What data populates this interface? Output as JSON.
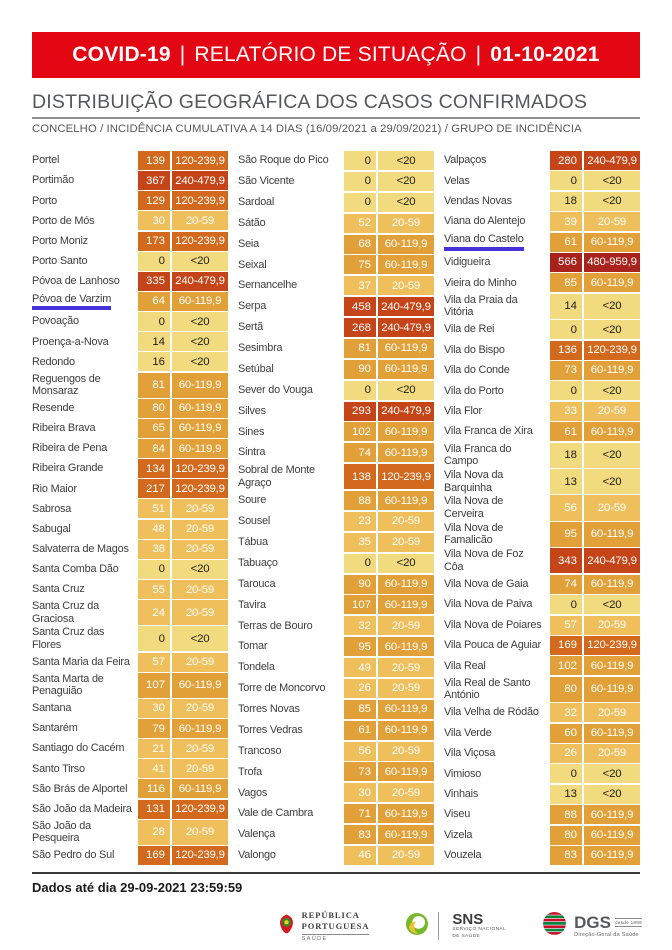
{
  "banner": {
    "background": "#E30613",
    "covid_label": "COVID-19",
    "separator": "|",
    "report_label": "RELATÓRIO DE SITUAÇÃO",
    "date": "01-10-2021"
  },
  "heading": {
    "title": "DISTRIBUIÇÃO GEOGRÁFICA DOS CASOS CONFIRMADOS",
    "subtitle": "CONCELHO / INCIDÊNCIA CUMULATIVA A 14 DIAS (16/09/2021 a 29/09/2021) / GRUPO DE INCIDÊNCIA"
  },
  "brand_colors": {
    "banner_red": "#E30613",
    "highlight_underline_blue": "#4632D8"
  },
  "incidence_groups": [
    {
      "label": "<20",
      "color": "#F2DA7E",
      "text_color": "#1d1d1b"
    },
    {
      "label": "20-59",
      "color": "#EFBF5C",
      "text_color": "#ffffff"
    },
    {
      "label": "60-119,9",
      "color": "#E1A138",
      "text_color": "#ffffff"
    },
    {
      "label": "120-239,9",
      "color": "#D2691C",
      "text_color": "#ffffff"
    },
    {
      "label": "240-479,9",
      "color": "#C54518",
      "text_color": "#ffffff"
    },
    {
      "label": "480-959,9",
      "color": "#A8231B",
      "text_color": "#ffffff"
    }
  ],
  "columns": [
    {
      "rows": [
        {
          "n": "Portel",
          "c": "139",
          "g": 3
        },
        {
          "n": "Portimão",
          "c": "367",
          "g": 4
        },
        {
          "n": "Porto",
          "c": "129",
          "g": 3
        },
        {
          "n": "Porto de Mós",
          "c": "30",
          "g": 1
        },
        {
          "n": "Porto Moniz",
          "c": "173",
          "g": 3
        },
        {
          "n": "Porto Santo",
          "c": "0",
          "g": 0
        },
        {
          "n": "Póvoa de Lanhoso",
          "c": "335",
          "g": 4
        },
        {
          "n": "Póvoa de Varzim",
          "c": "64",
          "g": 2,
          "u": true
        },
        {
          "n": "Povoação",
          "c": "0",
          "g": 0
        },
        {
          "n": "Proença-a-Nova",
          "c": "14",
          "g": 0
        },
        {
          "n": "Redondo",
          "c": "16",
          "g": 0
        },
        {
          "n": "Reguengos de Monsaraz",
          "c": "81",
          "g": 2
        },
        {
          "n": "Resende",
          "c": "80",
          "g": 2
        },
        {
          "n": "Ribeira Brava",
          "c": "65",
          "g": 2
        },
        {
          "n": "Ribeira de Pena",
          "c": "84",
          "g": 2
        },
        {
          "n": "Ribeira Grande",
          "c": "134",
          "g": 3
        },
        {
          "n": "Rio Maior",
          "c": "217",
          "g": 3
        },
        {
          "n": "Sabrosa",
          "c": "51",
          "g": 1
        },
        {
          "n": "Sabugal",
          "c": "48",
          "g": 1
        },
        {
          "n": "Salvaterra de Magos",
          "c": "38",
          "g": 1
        },
        {
          "n": "Santa Comba Dão",
          "c": "0",
          "g": 0
        },
        {
          "n": "Santa Cruz",
          "c": "55",
          "g": 1
        },
        {
          "n": "Santa Cruz da Graciosa",
          "c": "24",
          "g": 1
        },
        {
          "n": "Santa Cruz das Flores",
          "c": "0",
          "g": 0
        },
        {
          "n": "Santa Maria da Feira",
          "c": "57",
          "g": 1
        },
        {
          "n": "Santa Marta de Penaguião",
          "c": "107",
          "g": 2
        },
        {
          "n": "Santana",
          "c": "30",
          "g": 1
        },
        {
          "n": "Santarém",
          "c": "79",
          "g": 2
        },
        {
          "n": "Santiago do Cacém",
          "c": "21",
          "g": 1
        },
        {
          "n": "Santo Tirso",
          "c": "41",
          "g": 1
        },
        {
          "n": "São Brás de Alportel",
          "c": "116",
          "g": 2
        },
        {
          "n": "São João da Madeira",
          "c": "131",
          "g": 3
        },
        {
          "n": "São João da Pesqueira",
          "c": "28",
          "g": 1
        },
        {
          "n": "São Pedro do Sul",
          "c": "169",
          "g": 3
        }
      ]
    },
    {
      "rows": [
        {
          "n": "São Roque do Pico",
          "c": "0",
          "g": 0
        },
        {
          "n": "São Vicente",
          "c": "0",
          "g": 0
        },
        {
          "n": "Sardoal",
          "c": "0",
          "g": 0
        },
        {
          "n": "Sátão",
          "c": "52",
          "g": 1
        },
        {
          "n": "Seia",
          "c": "68",
          "g": 2
        },
        {
          "n": "Seixal",
          "c": "75",
          "g": 2
        },
        {
          "n": "Sernancelhe",
          "c": "37",
          "g": 1
        },
        {
          "n": "Serpa",
          "c": "458",
          "g": 4
        },
        {
          "n": "Sertã",
          "c": "268",
          "g": 4
        },
        {
          "n": "Sesimbra",
          "c": "81",
          "g": 2
        },
        {
          "n": "Setúbal",
          "c": "90",
          "g": 2
        },
        {
          "n": "Sever do Vouga",
          "c": "0",
          "g": 0
        },
        {
          "n": "Silves",
          "c": "293",
          "g": 4
        },
        {
          "n": "Sines",
          "c": "102",
          "g": 2
        },
        {
          "n": "Sintra",
          "c": "74",
          "g": 2
        },
        {
          "n": "Sobral de Monte Agraço",
          "c": "138",
          "g": 3
        },
        {
          "n": "Soure",
          "c": "88",
          "g": 2
        },
        {
          "n": "Sousel",
          "c": "23",
          "g": 1
        },
        {
          "n": "Tábua",
          "c": "35",
          "g": 1
        },
        {
          "n": "Tabuaço",
          "c": "0",
          "g": 0
        },
        {
          "n": "Tarouca",
          "c": "90",
          "g": 2
        },
        {
          "n": "Tavira",
          "c": "107",
          "g": 2
        },
        {
          "n": "Terras de Bouro",
          "c": "32",
          "g": 1
        },
        {
          "n": "Tomar",
          "c": "95",
          "g": 2
        },
        {
          "n": "Tondela",
          "c": "49",
          "g": 1
        },
        {
          "n": "Torre de Moncorvo",
          "c": "26",
          "g": 1
        },
        {
          "n": "Torres Novas",
          "c": "85",
          "g": 2
        },
        {
          "n": "Torres Vedras",
          "c": "61",
          "g": 2
        },
        {
          "n": "Trancoso",
          "c": "56",
          "g": 1
        },
        {
          "n": "Trofa",
          "c": "73",
          "g": 2
        },
        {
          "n": "Vagos",
          "c": "30",
          "g": 1
        },
        {
          "n": "Vale de Cambra",
          "c": "71",
          "g": 2
        },
        {
          "n": "Valença",
          "c": "83",
          "g": 2
        },
        {
          "n": "Valongo",
          "c": "46",
          "g": 1
        }
      ]
    },
    {
      "rows": [
        {
          "n": "Valpaços",
          "c": "280",
          "g": 4
        },
        {
          "n": "Velas",
          "c": "0",
          "g": 0
        },
        {
          "n": "Vendas Novas",
          "c": "18",
          "g": 0
        },
        {
          "n": "Viana do Alentejo",
          "c": "39",
          "g": 1
        },
        {
          "n": "Viana do Castelo",
          "c": "61",
          "g": 2,
          "u": true
        },
        {
          "n": "Vidigueira",
          "c": "566",
          "g": 5
        },
        {
          "n": "Vieira do Minho",
          "c": "85",
          "g": 2
        },
        {
          "n": "Vila da Praia da Vitória",
          "c": "14",
          "g": 0
        },
        {
          "n": "Vila de Rei",
          "c": "0",
          "g": 0
        },
        {
          "n": "Vila do Bispo",
          "c": "136",
          "g": 3
        },
        {
          "n": "Vila do Conde",
          "c": "73",
          "g": 2
        },
        {
          "n": "Vila do Porto",
          "c": "0",
          "g": 0
        },
        {
          "n": "Vila Flor",
          "c": "33",
          "g": 1
        },
        {
          "n": "Vila Franca de Xira",
          "c": "61",
          "g": 2
        },
        {
          "n": "Vila Franca do Campo",
          "c": "18",
          "g": 0
        },
        {
          "n": "Vila Nova da Barquinha",
          "c": "13",
          "g": 0
        },
        {
          "n": "Vila Nova de Cerveira",
          "c": "56",
          "g": 1
        },
        {
          "n": "Vila Nova de Famalicão",
          "c": "95",
          "g": 2
        },
        {
          "n": "Vila Nova de Foz Côa",
          "c": "343",
          "g": 4
        },
        {
          "n": "Vila Nova de Gaia",
          "c": "74",
          "g": 2
        },
        {
          "n": "Vila Nova de Paiva",
          "c": "0",
          "g": 0
        },
        {
          "n": "Vila Nova de Poiares",
          "c": "57",
          "g": 1
        },
        {
          "n": "Vila Pouca de Aguiar",
          "c": "169",
          "g": 3
        },
        {
          "n": "Vila Real",
          "c": "102",
          "g": 2
        },
        {
          "n": "Vila Real de Santo António",
          "c": "80",
          "g": 2
        },
        {
          "n": "Vila Velha de Ródão",
          "c": "32",
          "g": 1
        },
        {
          "n": "Vila Verde",
          "c": "60",
          "g": 2
        },
        {
          "n": "Vila Viçosa",
          "c": "26",
          "g": 1
        },
        {
          "n": "Vimioso",
          "c": "0",
          "g": 0
        },
        {
          "n": "Vinhais",
          "c": "13",
          "g": 0
        },
        {
          "n": "Viseu",
          "c": "88",
          "g": 2
        },
        {
          "n": "Vizela",
          "c": "80",
          "g": 2
        },
        {
          "n": "Vouzela",
          "c": "83",
          "g": 2
        }
      ]
    }
  ],
  "footer": {
    "data_note": "Dados até dia 29-09-2021 23:59:59",
    "logos": {
      "republica": {
        "line1": "REPÚBLICA",
        "line2": "PORTUGUESA",
        "sub": "SAÚDE"
      },
      "sns": {
        "abbr": "SNS",
        "sub1": "SERVIÇO NACIONAL",
        "sub2": "DE SAÚDE"
      },
      "dgs": {
        "abbr": "DGS",
        "since": "desde 1899",
        "sub": "Direção-Geral da Saúde"
      }
    }
  }
}
